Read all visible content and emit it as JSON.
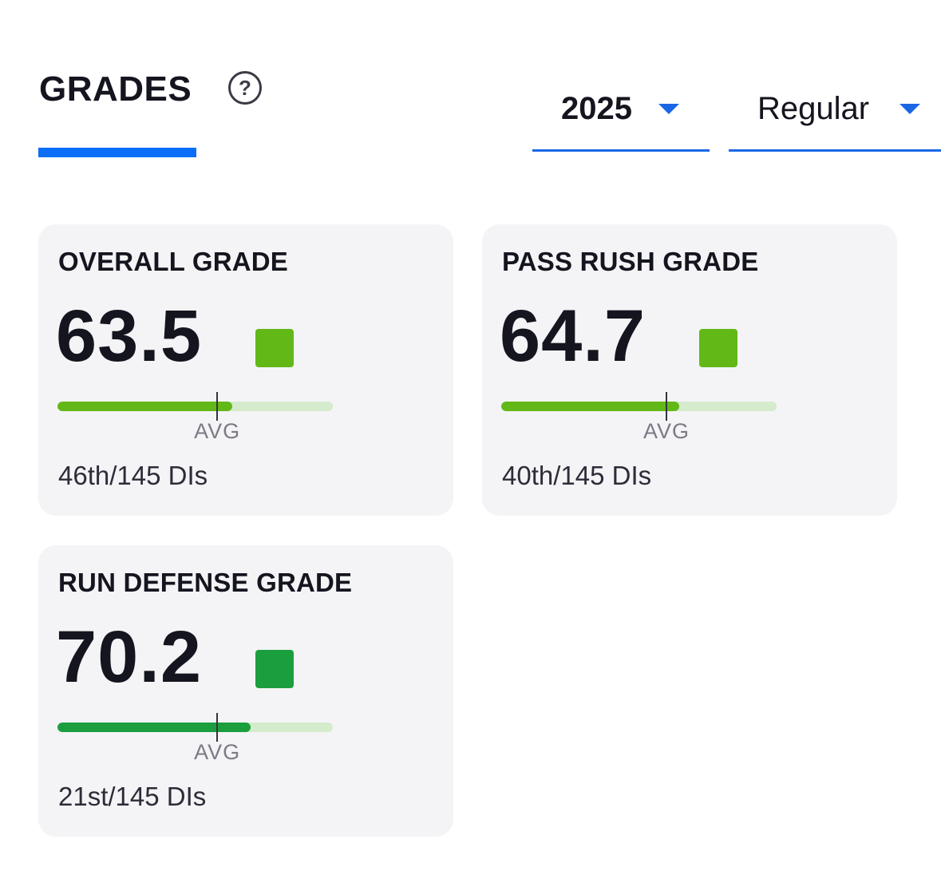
{
  "header": {
    "title": "GRADES",
    "help_symbol": "?",
    "accent_color": "#0b6ef6"
  },
  "filters": {
    "season": "2025",
    "season_type": "Regular"
  },
  "cards": [
    {
      "title": "OVERALL GRADE",
      "value": "63.5",
      "color": "#62b817",
      "fill_percent": 63.5,
      "avg_percent": 58,
      "avg_label": "AVG",
      "rank": "46th/145 DIs"
    },
    {
      "title": "PASS RUSH GRADE",
      "value": "64.7",
      "color": "#62b817",
      "fill_percent": 64.7,
      "avg_percent": 60,
      "avg_label": "AVG",
      "rank": "40th/145 DIs"
    },
    {
      "title": "RUN DEFENSE GRADE",
      "value": "70.2",
      "color": "#1b9f3e",
      "fill_percent": 70.2,
      "avg_percent": 58,
      "avg_label": "AVG",
      "rank": "21st/145 DIs"
    }
  ]
}
